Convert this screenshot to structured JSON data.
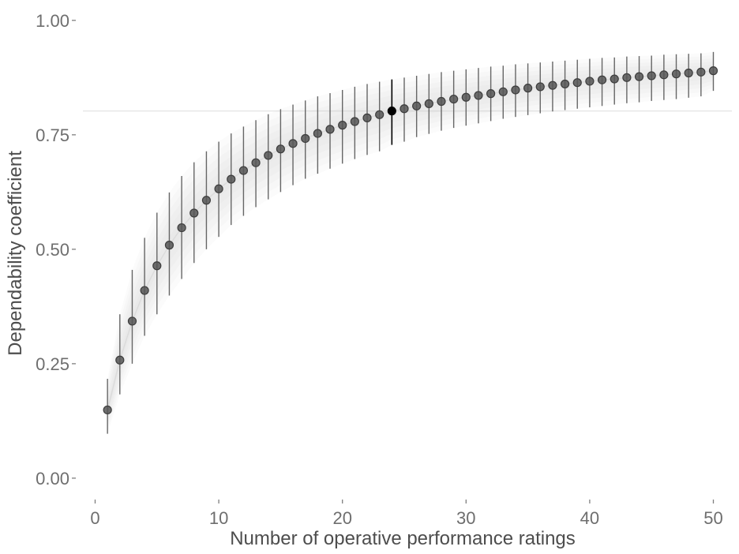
{
  "chart_data": {
    "type": "scatter",
    "title": "",
    "xlabel": "Number of operative performance ratings",
    "ylabel": "Dependability coefficient",
    "xlim": [
      -1.5,
      51.5
    ],
    "ylim": [
      -0.045,
      1.01
    ],
    "x_ticks": [
      0,
      10,
      20,
      30,
      40,
      50
    ],
    "x_tick_labels": [
      "0",
      "10",
      "20",
      "30",
      "40",
      "50"
    ],
    "y_ticks": [
      0,
      0.25,
      0.5,
      0.75,
      1
    ],
    "y_tick_labels": [
      "0.00",
      "0.25",
      "0.50",
      "0.75",
      "1.00"
    ],
    "grid": false,
    "reference_line": {
      "y": 0.802
    },
    "highlight": {
      "x": 24,
      "color": "#000000"
    },
    "colors": {
      "point": "#555555",
      "highlight": "#000000",
      "errorbar": "#666666",
      "band": "#cccccc",
      "refline": "#e6e6e6"
    },
    "series": [
      {
        "x": [
          1,
          2,
          3,
          4,
          5,
          6,
          7,
          8,
          9,
          10,
          11,
          12,
          13,
          14,
          15,
          16,
          17,
          18,
          19,
          20,
          21,
          22,
          23,
          24,
          25,
          26,
          27,
          28,
          29,
          30,
          31,
          32,
          33,
          34,
          35,
          36,
          37,
          38,
          39,
          40,
          41,
          42,
          43,
          44,
          45,
          46,
          47,
          48,
          49,
          50
        ],
        "y": [
          0.149,
          0.258,
          0.343,
          0.41,
          0.464,
          0.509,
          0.547,
          0.579,
          0.607,
          0.632,
          0.653,
          0.672,
          0.689,
          0.705,
          0.719,
          0.731,
          0.742,
          0.753,
          0.762,
          0.771,
          0.779,
          0.787,
          0.794,
          0.802,
          0.807,
          0.813,
          0.818,
          0.823,
          0.828,
          0.832,
          0.836,
          0.84,
          0.844,
          0.848,
          0.852,
          0.855,
          0.858,
          0.861,
          0.864,
          0.867,
          0.87,
          0.872,
          0.875,
          0.877,
          0.879,
          0.881,
          0.883,
          0.885,
          0.887,
          0.89
        ],
        "lower": [
          0.097,
          0.183,
          0.25,
          0.311,
          0.358,
          0.399,
          0.435,
          0.47,
          0.5,
          0.527,
          0.553,
          0.573,
          0.592,
          0.609,
          0.625,
          0.64,
          0.654,
          0.665,
          0.676,
          0.687,
          0.697,
          0.706,
          0.714,
          0.728,
          0.735,
          0.745,
          0.752,
          0.759,
          0.765,
          0.77,
          0.775,
          0.78,
          0.785,
          0.789,
          0.793,
          0.797,
          0.801,
          0.804,
          0.807,
          0.81,
          0.813,
          0.816,
          0.819,
          0.821,
          0.824,
          0.826,
          0.828,
          0.831,
          0.834,
          0.846
        ],
        "upper": [
          0.217,
          0.358,
          0.455,
          0.525,
          0.58,
          0.624,
          0.66,
          0.69,
          0.714,
          0.735,
          0.753,
          0.768,
          0.782,
          0.795,
          0.806,
          0.816,
          0.825,
          0.834,
          0.841,
          0.848,
          0.855,
          0.861,
          0.866,
          0.871,
          0.875,
          0.879,
          0.883,
          0.887,
          0.89,
          0.893,
          0.896,
          0.899,
          0.901,
          0.904,
          0.906,
          0.908,
          0.91,
          0.912,
          0.914,
          0.916,
          0.918,
          0.919,
          0.921,
          0.922,
          0.923,
          0.925,
          0.926,
          0.927,
          0.928,
          0.931
        ]
      }
    ]
  }
}
